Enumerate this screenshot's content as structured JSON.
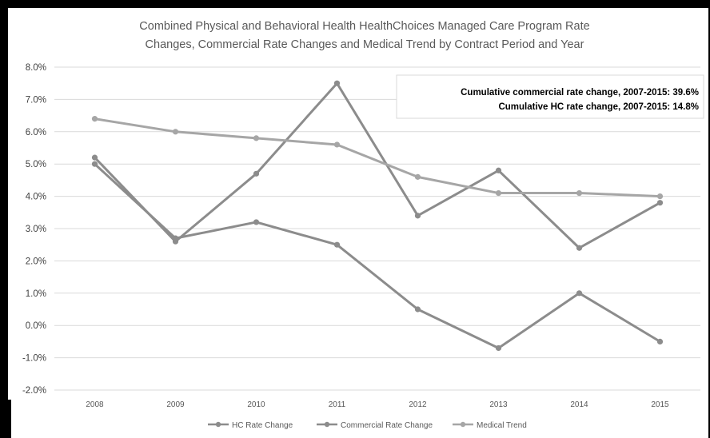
{
  "chart_data": {
    "type": "line",
    "title_lines": [
      "Combined Physical and Behavioral Health HealthChoices Managed Care Program Rate",
      "Changes, Commercial Rate Changes and Medical Trend by Contract Period and Year"
    ],
    "categories": [
      "2008",
      "2009",
      "2010",
      "2011",
      "2012",
      "2013",
      "2014",
      "2015"
    ],
    "y_ticks": [
      "8.0%",
      "7.0%",
      "6.0%",
      "5.0%",
      "4.0%",
      "3.0%",
      "2.0%",
      "1.0%",
      "0.0%",
      "-1.0%",
      "-2.0%"
    ],
    "ylim": [
      -2.0,
      8.0
    ],
    "y_step": 1.0,
    "grid": true,
    "legend_position": "bottom",
    "series": [
      {
        "name": "HC Rate Change",
        "color": "#8c8c8c",
        "values": [
          5.0,
          2.7,
          3.2,
          2.5,
          0.5,
          -0.7,
          1.0,
          -0.5
        ]
      },
      {
        "name": "Commercial Rate Change",
        "color": "#8c8c8c",
        "values": [
          5.2,
          2.6,
          4.7,
          7.5,
          3.4,
          4.8,
          2.4,
          3.8
        ]
      },
      {
        "name": "Medical Trend",
        "color": "#a6a6a6",
        "values": [
          6.4,
          6.0,
          5.8,
          5.6,
          4.6,
          4.1,
          4.1,
          4.0
        ]
      }
    ],
    "annotations": [
      "Cumulative commercial rate change, 2007-2015: 39.6%",
      "Cumulative HC rate change, 2007-2015: 14.8%"
    ]
  }
}
